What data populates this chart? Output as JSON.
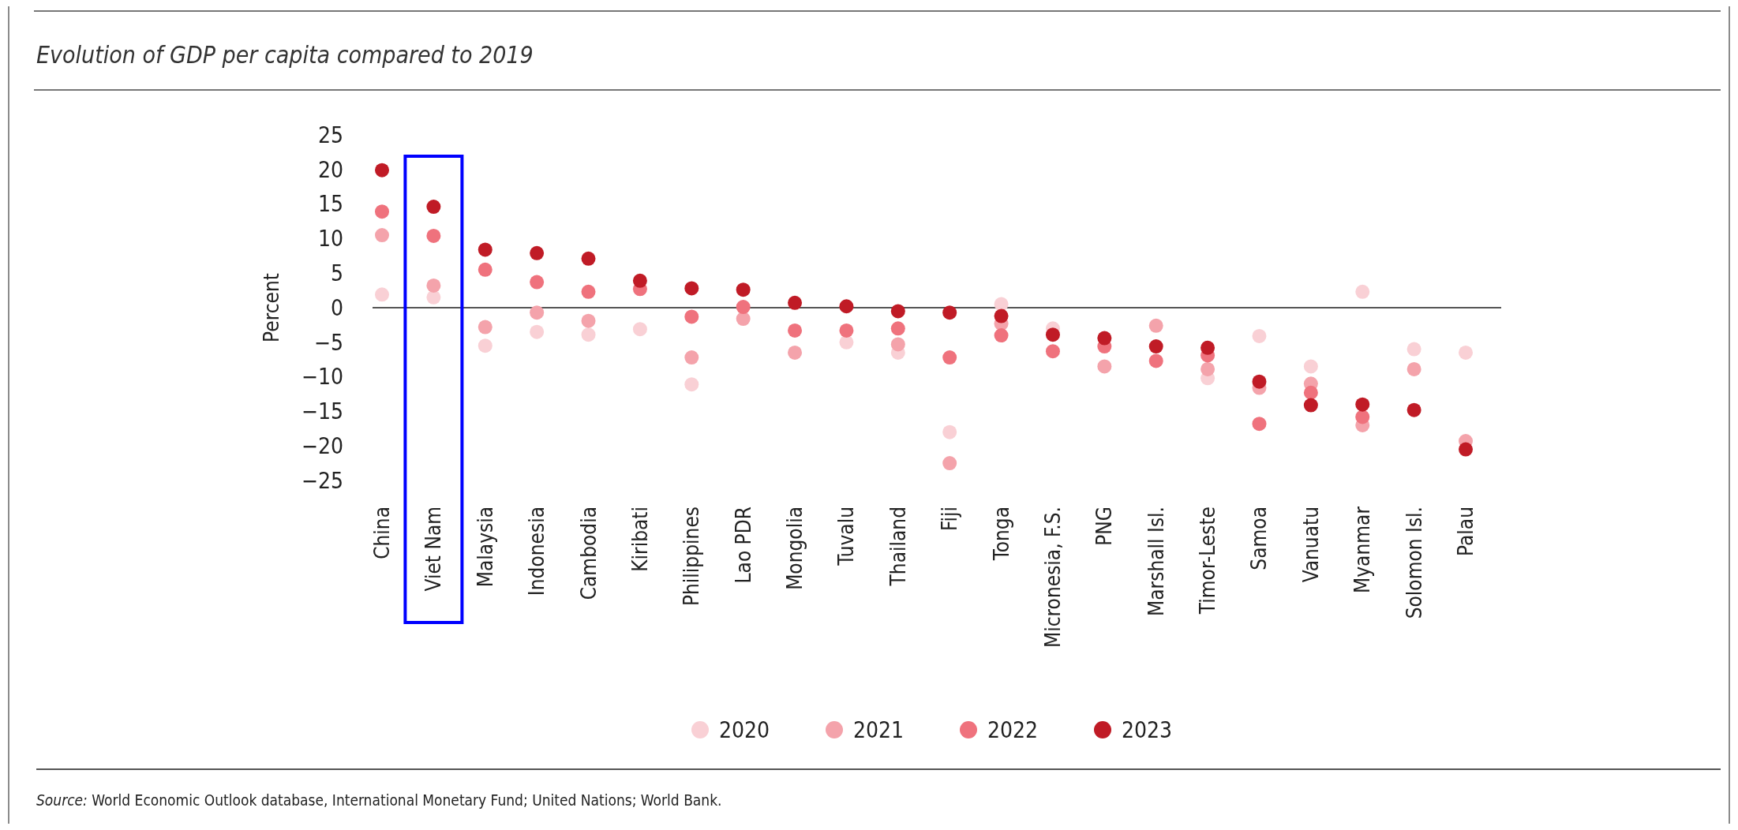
{
  "chart_data": {
    "type": "scatter",
    "title": "Evolution of GDP per capita compared to 2019",
    "ylabel": "Percent",
    "categories": [
      "China",
      "Viet Nam",
      "Malaysia",
      "Indonesia",
      "Cambodia",
      "Kiribati",
      "Philippines",
      "Lao PDR",
      "Mongolia",
      "Tuvalu",
      "Thailand",
      "Fiji",
      "Tonga",
      "Micronesia, F.S.",
      "PNG",
      "Marshall Isl.",
      "Timor-Leste",
      "Samoa",
      "Vanuatu",
      "Myanmar",
      "Solomon Isl.",
      "Palau"
    ],
    "series": [
      {
        "name": "2020",
        "color": "#f9d0d5",
        "values": [
          1.9,
          1.5,
          -5.5,
          -3.5,
          -3.9,
          -3.1,
          -11.1,
          null,
          null,
          -5.0,
          -6.5,
          -18.0,
          0.5,
          -3.0,
          null,
          null,
          -10.2,
          -4.1,
          -8.5,
          2.3,
          -6.0,
          -6.5
        ]
      },
      {
        "name": "2021",
        "color": "#f4a3ab",
        "values": [
          10.5,
          3.2,
          -2.8,
          -0.7,
          -1.9,
          null,
          -7.2,
          -1.6,
          -6.5,
          null,
          -5.3,
          -22.5,
          -2.3,
          null,
          -8.5,
          -2.6,
          -8.9,
          -11.6,
          -11.0,
          -17.0,
          -8.9,
          -19.3
        ]
      },
      {
        "name": "2022",
        "color": "#ef727d",
        "values": [
          13.9,
          10.4,
          5.5,
          3.7,
          2.3,
          2.7,
          -1.3,
          0.1,
          -3.3,
          -3.3,
          -3.0,
          -7.2,
          -4.0,
          -6.3,
          -5.6,
          -7.7,
          -6.9,
          -16.8,
          -12.3,
          -15.8,
          null,
          null
        ]
      },
      {
        "name": "2023",
        "color": "#c01b26",
        "values": [
          19.9,
          14.6,
          8.4,
          7.9,
          7.1,
          3.9,
          2.8,
          2.6,
          0.7,
          0.2,
          -0.5,
          -0.7,
          -1.2,
          -3.9,
          -4.4,
          -5.6,
          -5.8,
          -10.7,
          -14.1,
          -14.0,
          -14.8,
          -20.5
        ]
      }
    ],
    "ylim": [
      -25,
      25
    ],
    "yticks": [
      25,
      20,
      15,
      10,
      5,
      0,
      -5,
      -10,
      -15,
      -20,
      -25
    ],
    "ref_lines": [
      {
        "axis": "y",
        "value": 0,
        "color": "#555555"
      }
    ],
    "legend": "bottom",
    "marker": "circle",
    "annotations": [
      "Source: World Economic Outlook database, International Monetary Fund; United Nations; World Bank."
    ]
  }
}
